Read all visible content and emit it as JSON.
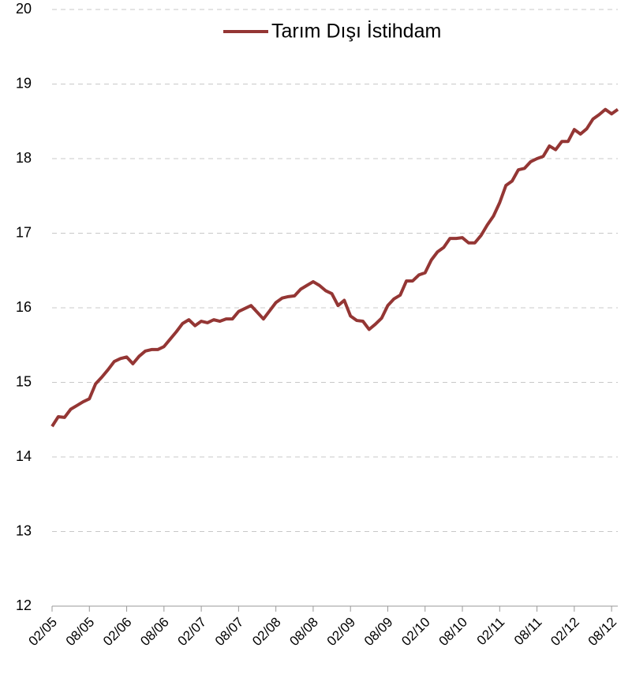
{
  "chart_data": {
    "type": "line",
    "categories": [
      "02/05",
      null,
      null,
      null,
      null,
      null,
      "08/05",
      null,
      null,
      null,
      null,
      null,
      "02/06",
      null,
      null,
      null,
      null,
      null,
      "08/06",
      null,
      null,
      null,
      null,
      null,
      "02/07",
      null,
      null,
      null,
      null,
      null,
      "08/07",
      null,
      null,
      null,
      null,
      null,
      "02/08",
      null,
      null,
      null,
      null,
      null,
      "08/08",
      null,
      null,
      null,
      null,
      null,
      "02/09",
      null,
      null,
      null,
      null,
      null,
      "08/09",
      null,
      null,
      null,
      null,
      null,
      "02/10",
      null,
      null,
      null,
      null,
      null,
      "08/10",
      null,
      null,
      null,
      null,
      null,
      "02/11",
      null,
      null,
      null,
      null,
      null,
      "08/11",
      null,
      null,
      null,
      null,
      null,
      "02/12",
      null,
      null,
      null,
      null,
      null,
      "08/12",
      null
    ],
    "series": [
      {
        "name": "Tarım Dışı İstihdam",
        "color": "#943634",
        "values": [
          14.41,
          14.54,
          14.53,
          14.64,
          14.69,
          14.74,
          14.78,
          14.98,
          15.07,
          15.17,
          15.28,
          15.32,
          15.34,
          15.25,
          15.35,
          15.42,
          15.44,
          15.44,
          15.48,
          15.58,
          15.68,
          15.79,
          15.84,
          15.76,
          15.82,
          15.8,
          15.84,
          15.82,
          15.85,
          15.85,
          15.95,
          15.99,
          16.03,
          15.94,
          15.85,
          15.96,
          16.07,
          16.13,
          16.15,
          16.16,
          16.25,
          16.3,
          16.35,
          16.3,
          16.23,
          16.19,
          16.03,
          16.1,
          15.89,
          15.83,
          15.82,
          15.71,
          15.78,
          15.86,
          16.03,
          16.12,
          16.17,
          16.36,
          16.36,
          16.44,
          16.47,
          16.64,
          16.75,
          16.81,
          16.93,
          16.93,
          16.94,
          16.87,
          16.87,
          16.97,
          17.11,
          17.23,
          17.41,
          17.64,
          17.7,
          17.85,
          17.87,
          17.96,
          18.0,
          18.03,
          18.17,
          18.12,
          18.23,
          18.23,
          18.39,
          18.33,
          18.4,
          18.53,
          18.59,
          18.66,
          18.6,
          18.66
        ]
      }
    ],
    "ylim": [
      12,
      20
    ],
    "yticks": [
      12,
      13,
      14,
      15,
      16,
      17,
      18,
      19,
      20
    ],
    "grid": true,
    "legend": "top"
  }
}
